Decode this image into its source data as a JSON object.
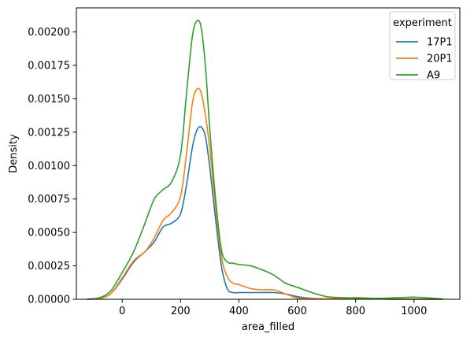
{
  "chart_data": {
    "type": "line",
    "title": "",
    "xlabel": "area_filled",
    "ylabel": "Density",
    "xlim": [
      -157,
      1157
    ],
    "ylim": [
      0,
      0.00218
    ],
    "xticks": [
      0,
      200,
      400,
      600,
      800,
      1000
    ],
    "xtick_labels": [
      "0",
      "200",
      "400",
      "600",
      "800",
      "1000"
    ],
    "yticks": [
      0.0,
      0.00025,
      0.0005,
      0.00075,
      0.001,
      0.00125,
      0.0015,
      0.00175,
      0.002
    ],
    "ytick_labels": [
      "0.00000",
      "0.00025",
      "0.00050",
      "0.00075",
      "0.00100",
      "0.00125",
      "0.00150",
      "0.00175",
      "0.00200"
    ],
    "grid": false,
    "legend": {
      "title": "experiment",
      "placement": "upper right"
    },
    "series": [
      {
        "name": "17P1",
        "color": "#1f77b4",
        "x": [
          -120,
          -80,
          -40,
          0,
          40,
          80,
          110,
          140,
          170,
          200,
          220,
          240,
          255,
          270,
          285,
          300,
          320,
          340,
          360,
          380,
          400,
          440,
          480,
          520,
          560,
          600,
          650,
          700,
          750,
          800,
          850,
          900,
          950,
          1000,
          1050,
          1100
        ],
        "y": [
          0.0,
          5e-06,
          4e-05,
          0.00015,
          0.00028,
          0.00036,
          0.00043,
          0.00054,
          0.00057,
          0.00064,
          0.00085,
          0.00113,
          0.00126,
          0.00129,
          0.00122,
          0.00099,
          0.0006,
          0.00025,
          8e-05,
          5e-05,
          5e-05,
          5e-05,
          5e-05,
          5e-05,
          4e-05,
          2e-05,
          6e-06,
          3e-06,
          4e-06,
          1.2e-05,
          8e-06,
          2e-06,
          0.0,
          0.0,
          0.0,
          0.0
        ]
      },
      {
        "name": "20P1",
        "color": "#ff7f0e",
        "x": [
          -120,
          -80,
          -40,
          0,
          40,
          80,
          110,
          140,
          170,
          200,
          220,
          240,
          255,
          270,
          285,
          300,
          320,
          340,
          360,
          380,
          400,
          440,
          480,
          520,
          560,
          600,
          650,
          700,
          750,
          800,
          850,
          900,
          950,
          1000,
          1050,
          1100
        ],
        "y": [
          0.0,
          5e-06,
          4e-05,
          0.00016,
          0.00029,
          0.00036,
          0.00046,
          0.00059,
          0.00065,
          0.00077,
          0.00108,
          0.00146,
          0.00157,
          0.00155,
          0.00138,
          0.00113,
          0.00069,
          0.00032,
          0.00017,
          0.00012,
          0.00011,
          8e-05,
          7e-05,
          7e-05,
          4e-05,
          1e-05,
          5e-06,
          4e-06,
          6e-06,
          1.2e-05,
          6e-06,
          2e-06,
          0.0,
          0.0,
          0.0,
          0.0
        ]
      },
      {
        "name": "A9",
        "color": "#2ca02c",
        "x": [
          -120,
          -80,
          -40,
          0,
          40,
          80,
          110,
          140,
          170,
          200,
          220,
          240,
          255,
          270,
          285,
          300,
          320,
          340,
          360,
          380,
          400,
          440,
          480,
          520,
          560,
          600,
          650,
          700,
          750,
          800,
          850,
          900,
          950,
          1000,
          1050,
          1100
        ],
        "y": [
          0.0,
          1e-05,
          6e-05,
          0.0002,
          0.00036,
          0.00058,
          0.00075,
          0.00082,
          0.00088,
          0.00108,
          0.00153,
          0.00196,
          0.00208,
          0.00204,
          0.00175,
          0.00128,
          0.00075,
          0.00037,
          0.00028,
          0.00027,
          0.00026,
          0.00025,
          0.00022,
          0.00018,
          0.00012,
          9e-05,
          5e-05,
          2e-05,
          1.2e-05,
          8e-06,
          5e-06,
          8e-06,
          1.2e-05,
          1.6e-05,
          1e-05,
          2e-06
        ]
      }
    ]
  }
}
